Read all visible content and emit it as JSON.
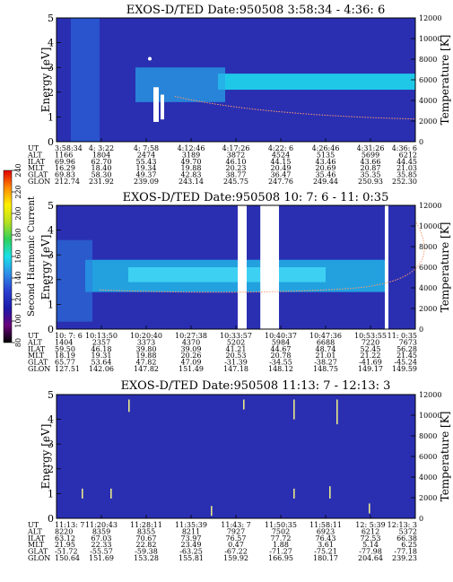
{
  "chart_data": [
    {
      "type": "heatmap",
      "title": "EXOS-D/TED   Date:950508   3:58:34 - 4:36: 6",
      "ylabel": "Energy [eV]",
      "ylim": [
        0,
        5
      ],
      "yticks": [
        "0",
        "1",
        "2",
        "3",
        "4",
        "5"
      ],
      "y2label": "Temperature [K]",
      "y2lim": [
        0,
        12000
      ],
      "y2ticks": [
        "0",
        "2000",
        "4000",
        "6000",
        "8000",
        "10000",
        "12000"
      ],
      "gap_columns": [],
      "x_table": {
        "row_labels": [
          "UT",
          "ALT",
          "ILAT",
          "MLT",
          "GLAT",
          "GLON"
        ],
        "columns": [
          [
            "3:58:34",
            "1166",
            "69.96",
            "16.29",
            "69.83",
            "212.74"
          ],
          [
            "4: 3:22",
            "1804",
            "62.70",
            "18.40",
            "58.30",
            "231.92"
          ],
          [
            "4: 7:58",
            "2474",
            "55.43",
            "19.34",
            "49.37",
            "239.09"
          ],
          [
            "4:12:46",
            "3189",
            "49.70",
            "19.88",
            "42.83",
            "243.14"
          ],
          [
            "4:17:26",
            "3872",
            "46.10",
            "20.23",
            "38.77",
            "245.75"
          ],
          [
            "4:22: 6",
            "4524",
            "44.15",
            "20.49",
            "36.47",
            "247.76"
          ],
          [
            "4:26:46",
            "5135",
            "43.46",
            "20.69",
            "35.46",
            "249.44"
          ],
          [
            "4:31:26",
            "5699",
            "43.66",
            "20.87",
            "35.35",
            "250.93"
          ],
          [
            "4:36: 6",
            "6212",
            "44.45",
            "21.03",
            "35.85",
            "252.30"
          ]
        ]
      }
    },
    {
      "type": "heatmap",
      "title": "EXOS-D/TED   Date:950508  10: 7: 6 - 11: 0:35",
      "ylabel": "Energy [eV]",
      "ylim": [
        0,
        5
      ],
      "yticks": [
        "0",
        "1",
        "2",
        "3",
        "4",
        "5"
      ],
      "y2label": "Temperature [K]",
      "y2lim": [
        0,
        12000
      ],
      "y2ticks": [
        "0",
        "2000",
        "4000",
        "6000",
        "8000",
        "10000",
        "12000"
      ],
      "gap_columns": [
        [
          0.505,
          0.53
        ],
        [
          0.568,
          0.62
        ],
        [
          0.915,
          0.925
        ]
      ],
      "x_table": {
        "row_labels": [
          "UT",
          "ALT",
          "ILAT",
          "MLT",
          "GLAT",
          "GLON"
        ],
        "columns": [
          [
            "10: 7: 6",
            "1404",
            "59.50",
            "18.19",
            "65.77",
            "127.51"
          ],
          [
            "10:13:50",
            "2357",
            "46.18",
            "19.31",
            "53.64",
            "142.06"
          ],
          [
            "10:20:40",
            "3373",
            "39.80",
            "19.88",
            "47.82",
            "147.82"
          ],
          [
            "10:27:38",
            "4370",
            "39.09",
            "20.26",
            "47.09",
            "151.49"
          ],
          [
            "10:33:57",
            "5202",
            "41.21",
            "20.53",
            "-31.39",
            "147.18"
          ],
          [
            "10:40:37",
            "5984",
            "44.67",
            "20.78",
            "-34.55",
            "148.12"
          ],
          [
            "10:47:36",
            "6688",
            "48.74",
            "21.01",
            "-38.27",
            "148.75"
          ],
          [
            "10:53:55",
            "7220",
            "52.45",
            "21.22",
            "-41.69",
            "149.17"
          ],
          [
            "11: 0:35",
            "7673",
            "56.28",
            "21.45",
            "-45.24",
            "149.59"
          ]
        ]
      }
    },
    {
      "type": "heatmap",
      "title": "EXOS-D/TED   Date:950508  11:13: 7 - 12:13: 3",
      "ylabel": "Energy [eV]",
      "ylim": [
        0,
        5
      ],
      "yticks": [
        "0",
        "1",
        "2",
        "3",
        "4",
        "5"
      ],
      "y2label": "Temperature [K]",
      "y2lim": [
        0,
        12000
      ],
      "y2ticks": [
        "0",
        "2000",
        "4000",
        "6000",
        "8000",
        "10000",
        "12000"
      ],
      "gap_columns": [],
      "x_table": {
        "row_labels": [
          "UT",
          "ALT",
          "ILAT",
          "MLT",
          "GLAT",
          "GLON"
        ],
        "columns": [
          [
            "11:13: 7",
            "8220",
            "63.12",
            "21.95",
            "-51.72",
            "150.64"
          ],
          [
            "11:20:43",
            "8359",
            "67.03",
            "22.33",
            "-55.57",
            "151.69"
          ],
          [
            "11:28:11",
            "8355",
            "70.67",
            "22.82",
            "-59.38",
            "153.28"
          ],
          [
            "11:35:39",
            "8211",
            "73.97",
            "23.49",
            "-63.25",
            "155.81"
          ],
          [
            "11:43: 7",
            "7927",
            "76.57",
            "0.47",
            "-67.22",
            "159.92"
          ],
          [
            "11:50:35",
            "7502",
            "77.72",
            "1.88",
            "-71.27",
            "166.95"
          ],
          [
            "11:58:11",
            "6923",
            "76.43",
            "3.61",
            "-75.21",
            "180.17"
          ],
          [
            "12: 5:39",
            "6212",
            "72.53",
            "5.14",
            "-77.98",
            "204.64"
          ],
          [
            "12:13: 3",
            "5372",
            "66.38",
            "6.25",
            "-77.18",
            "239.23"
          ]
        ]
      }
    }
  ],
  "colorbar": {
    "label": "Second Harmonic Current",
    "ticks": [
      "80",
      "100",
      "120",
      "140",
      "160",
      "180",
      "200",
      "220",
      "240"
    ],
    "range": [
      80,
      240
    ],
    "stops": [
      "#000000",
      "#6a007a",
      "#1a1aa8",
      "#2a3fd0",
      "#2c8ee8",
      "#19e0e8",
      "#2fd05a",
      "#b8e020",
      "#fff000",
      "#ff8a00",
      "#e00000"
    ]
  }
}
